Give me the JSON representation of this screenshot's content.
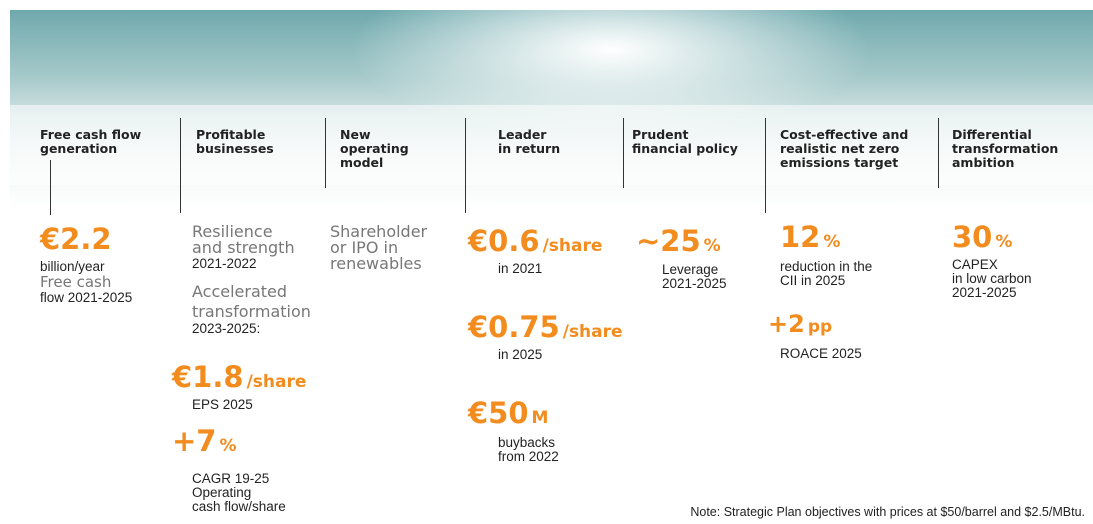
{
  "headers": [
    [
      "Free cash flow",
      "generation"
    ],
    [
      "Profitable",
      "businesses"
    ],
    [
      "New",
      "operating",
      "model"
    ],
    [
      "Leader",
      "in return"
    ],
    [
      "Prudent",
      "financial policy"
    ],
    [
      "Cost-effective and",
      "realistic net zero",
      "emissions target"
    ],
    [
      "Differential",
      "transformation",
      "ambition"
    ]
  ],
  "free_cash_flow": {
    "figure": "€2.2",
    "lines": [
      "billion/year",
      "Free cash",
      "flow 2021-2025"
    ]
  },
  "profitable": {
    "resilience": [
      "Resilience",
      "and strength"
    ],
    "period1": "2021-2022",
    "accelerated": [
      "Accelerated",
      "transformation"
    ],
    "period2": "2023-2025:",
    "eps": {
      "figure": "€1.8",
      "unit": "/share",
      "label": "EPS 2025"
    },
    "cagr": {
      "figure": "+7",
      "unit": "%",
      "lines": [
        "CAGR 19-25",
        "Operating",
        "cash flow/share"
      ]
    }
  },
  "operating_model": [
    "Shareholder",
    "or IPO in",
    "renewables"
  ],
  "return": [
    {
      "figure": "€0.6",
      "unit": "/share",
      "lines": [
        "in 2021"
      ]
    },
    {
      "figure": "€0.75",
      "unit": "/share",
      "lines": [
        "in 2025"
      ]
    },
    {
      "figure": "€50",
      "unit": "M",
      "lines": [
        "buybacks",
        "from 2022"
      ]
    }
  ],
  "financial": {
    "figure": "~25",
    "unit": "%",
    "lines": [
      "Leverage",
      "2021-2025"
    ]
  },
  "net_zero": [
    {
      "figure": "12",
      "unit": "%",
      "lines": [
        "reduction in the",
        "CII in 2025"
      ]
    },
    {
      "figure": "+2",
      "unit": "pp",
      "lines": [
        "ROACE 2025"
      ]
    }
  ],
  "ambition": {
    "figure": "30",
    "unit": "%",
    "lines": [
      "CAPEX",
      "in low carbon",
      "2021-2025"
    ]
  },
  "note": "Note: Strategic Plan objectives with prices at $50/barrel and $2.5/MBtu."
}
